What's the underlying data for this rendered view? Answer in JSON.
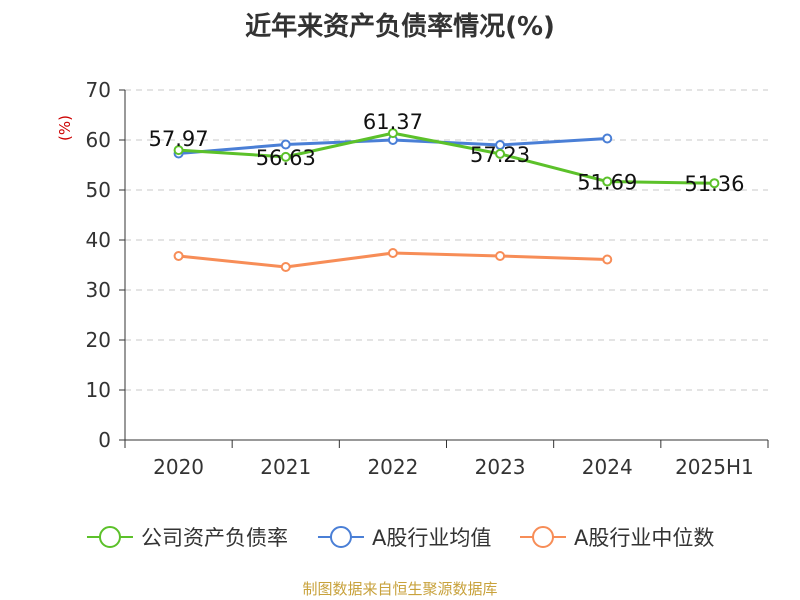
{
  "chart_data": {
    "type": "line",
    "title": "近年来资产负债率情况(%)",
    "ylabel": "(%)",
    "categories": [
      "2020",
      "2021",
      "2022",
      "2023",
      "2024",
      "2025H1"
    ],
    "ylim": [
      0,
      70
    ],
    "yticks": [
      0,
      10,
      20,
      30,
      40,
      50,
      60,
      70
    ],
    "grid": true,
    "legend_position": "bottom",
    "series": [
      {
        "name": "公司资产负债率",
        "color": "#5cc12a",
        "values": [
          57.97,
          56.63,
          61.37,
          57.23,
          51.69,
          51.36
        ],
        "data_labels": [
          "57.97",
          "56.63",
          "61.37",
          "57.23",
          "51.69",
          "51.36"
        ]
      },
      {
        "name": "A股行业均值",
        "color": "#4a7fd6",
        "values": [
          57.3,
          59.1,
          60.0,
          59.0,
          60.3,
          null
        ]
      },
      {
        "name": "A股行业中位数",
        "color": "#f78d57",
        "values": [
          36.8,
          34.6,
          37.4,
          36.8,
          36.1,
          null
        ]
      }
    ]
  },
  "source": "制图数据来自恒生聚源数据库",
  "colors": {
    "axis": "#333333",
    "grid": "#c8c8c8",
    "ylabel": "#cc0000"
  }
}
